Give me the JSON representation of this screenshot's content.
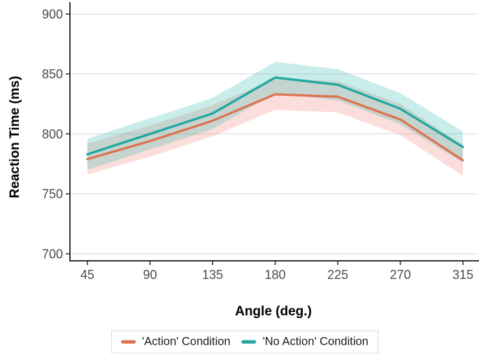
{
  "chart_data": {
    "type": "line",
    "title": "",
    "xlabel": "Angle (deg.)",
    "ylabel": "Reaction Time (ms)",
    "x": [
      45,
      90,
      135,
      180,
      225,
      270,
      315
    ],
    "x_ticks": [
      45,
      90,
      135,
      180,
      225,
      270,
      315
    ],
    "y_ticks": [
      700,
      750,
      800,
      850,
      900
    ],
    "ylim": [
      694,
      910
    ],
    "grid": "horizontal-only",
    "legend_position": "bottom",
    "series": [
      {
        "name": "'Action' Condition",
        "values": [
          779,
          794,
          811,
          833,
          831,
          812,
          778
        ],
        "ci_halfwidth": 13,
        "color": "#DC7450",
        "band_color": "rgba(237,107,89,0.22)"
      },
      {
        "name": "'No Action' Condition",
        "values": [
          783,
          800,
          817,
          847,
          841,
          821,
          789
        ],
        "ci_halfwidth": 13,
        "color": "#21A7A0",
        "band_color": "rgba(38,183,173,0.25)"
      }
    ],
    "axis_colors": {
      "axis_line": "#333333",
      "tick_label": "#4d4d4d",
      "gridline": "#e4e4e4"
    }
  }
}
